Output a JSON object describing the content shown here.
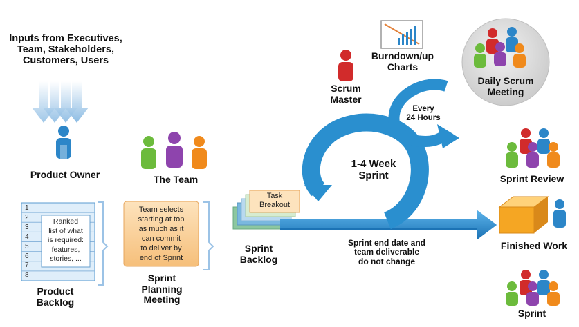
{
  "inputs": {
    "lines": [
      "Inputs from Executives,",
      "Team, Stakeholders,",
      "Customers, Users"
    ]
  },
  "product_owner": {
    "label": "Product Owner"
  },
  "the_team": {
    "label": "The Team"
  },
  "product_backlog": {
    "rows": [
      "1",
      "2",
      "3",
      "4",
      "5",
      "6",
      "7",
      "8"
    ],
    "note_lines": [
      "Ranked",
      "list of what",
      "is required:",
      "features,",
      "stories, ..."
    ],
    "label_lines": [
      "Product",
      "Backlog"
    ]
  },
  "sprint_planning": {
    "note_lines": [
      "Team selects",
      "starting at top",
      "as much as it",
      "can commit",
      "to deliver by",
      "end of Sprint"
    ],
    "label_lines": [
      "Sprint",
      "Planning",
      "Meeting"
    ]
  },
  "task_breakout": {
    "lines": [
      "Task",
      "Breakout"
    ]
  },
  "sprint_backlog": {
    "label_lines": [
      "Sprint",
      "Backlog"
    ]
  },
  "scrum_master": {
    "label_lines": [
      "Scrum",
      "Master"
    ]
  },
  "burndown": {
    "label_lines": [
      "Burndown/up",
      "Charts"
    ]
  },
  "daily_scrum": {
    "label_lines": [
      "Daily Scrum",
      "Meeting"
    ]
  },
  "every_24": {
    "lines": [
      "Every",
      "24 Hours"
    ]
  },
  "sprint_cycle": {
    "lines": [
      "1-4 Week",
      "Sprint"
    ]
  },
  "sprint_end_note": {
    "lines": [
      "Sprint end date and",
      "team deliverable",
      "do not change"
    ]
  },
  "sprint_review": {
    "label": "Sprint Review"
  },
  "finished_work": {
    "underlined": "Finished",
    "rest": " Work"
  },
  "sprint_retro": {
    "label": "Sprint"
  },
  "colors": {
    "arrow_blue": "#2a8fcf",
    "person_blue": "#2c86c8",
    "person_red": "#d12b2b",
    "person_green": "#6cbb3c",
    "person_purple": "#8e44ad",
    "person_orange": "#f08a1c",
    "note_orange": "#f7c98a",
    "backlog_blue": "#dfeefa",
    "box_orange": "#f5a623"
  }
}
